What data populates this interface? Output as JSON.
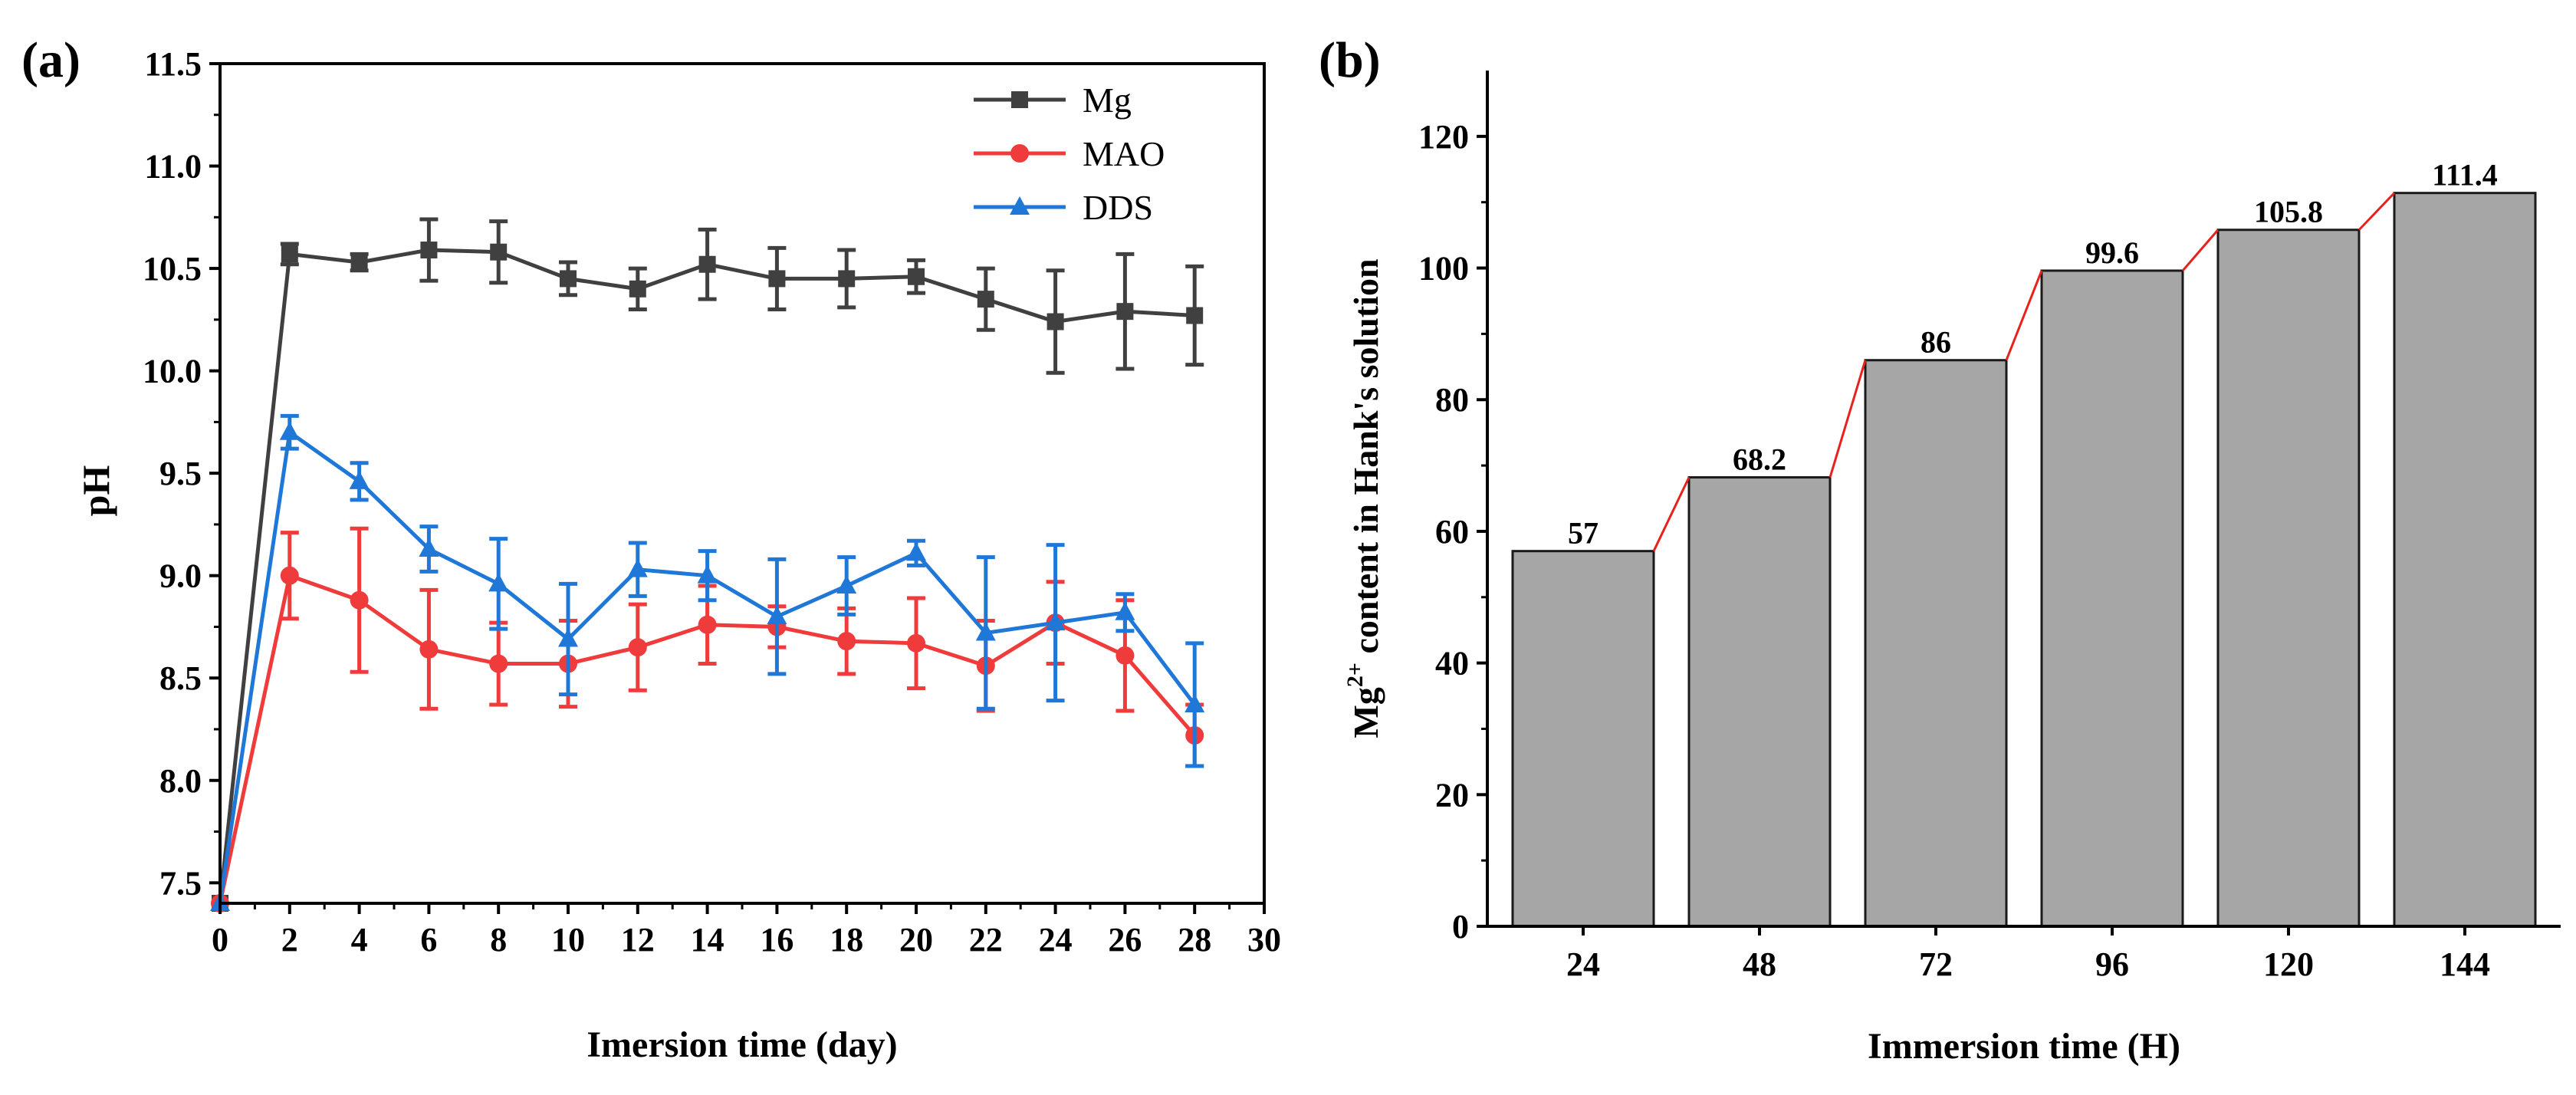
{
  "chart_data": [
    {
      "panel": "(a)",
      "type": "line",
      "xlabel": "Imersion time (day)",
      "ylabel": "pH",
      "xlim": [
        0,
        30
      ],
      "ylim": [
        7.4,
        11.5
      ],
      "xticks": [
        0,
        2,
        4,
        6,
        8,
        10,
        12,
        14,
        16,
        18,
        20,
        22,
        24,
        26,
        28,
        30
      ],
      "yticks": [
        "7.5",
        "8.0",
        "8.5",
        "9.0",
        "9.5",
        "10.0",
        "10.5",
        "11.0",
        "11.5"
      ],
      "legend_position": "top-right",
      "x": [
        0,
        2,
        4,
        6,
        8,
        10,
        12,
        14,
        16,
        18,
        20,
        22,
        24,
        26,
        28
      ],
      "series": [
        {
          "name": "Mg",
          "color": "#404040",
          "marker": "square",
          "values": [
            7.4,
            10.57,
            10.53,
            10.59,
            10.58,
            10.45,
            10.4,
            10.52,
            10.45,
            10.45,
            10.46,
            10.35,
            10.24,
            10.29,
            10.27
          ],
          "errors": [
            0,
            0.05,
            0.04,
            0.15,
            0.15,
            0.08,
            0.1,
            0.17,
            0.15,
            0.14,
            0.08,
            0.15,
            0.25,
            0.28,
            0.24
          ]
        },
        {
          "name": "MAO",
          "color": "#ef3b3b",
          "marker": "circle",
          "values": [
            7.4,
            9.0,
            8.88,
            8.64,
            8.57,
            8.57,
            8.65,
            8.76,
            8.75,
            8.68,
            8.67,
            8.56,
            8.77,
            8.61,
            8.22
          ],
          "errors": [
            0,
            0.21,
            0.35,
            0.29,
            0.2,
            0.21,
            0.21,
            0.19,
            0.1,
            0.16,
            0.22,
            0.22,
            0.2,
            0.27,
            0.15
          ]
        },
        {
          "name": "DDS",
          "color": "#1f78d8",
          "marker": "triangle",
          "values": [
            7.4,
            9.7,
            9.46,
            9.13,
            8.96,
            8.69,
            9.03,
            9.0,
            8.8,
            8.95,
            9.11,
            8.72,
            8.77,
            8.82,
            8.37
          ],
          "errors": [
            0,
            0.08,
            0.09,
            0.11,
            0.22,
            0.27,
            0.13,
            0.12,
            0.28,
            0.14,
            0.06,
            0.37,
            0.38,
            0.09,
            0.3
          ]
        }
      ]
    },
    {
      "panel": "(b)",
      "type": "bar",
      "xlabel": "Immersion time (H)",
      "ylabel_main": "Mg",
      "ylabel_sup": "2+",
      "ylabel_rest": " content in Hank's solution",
      "ylim": [
        0,
        130
      ],
      "yticks": [
        0,
        20,
        40,
        60,
        80,
        100,
        120
      ],
      "categories": [
        "24",
        "48",
        "72",
        "96",
        "120",
        "144"
      ],
      "values": [
        57,
        68.2,
        86,
        99.6,
        105.8,
        111.4
      ],
      "value_labels": [
        "57",
        "68.2",
        "86",
        "99.6",
        "105.8",
        "111.4"
      ],
      "bar_color": "#a6a6a6",
      "connector_color": "#e8211d"
    }
  ]
}
